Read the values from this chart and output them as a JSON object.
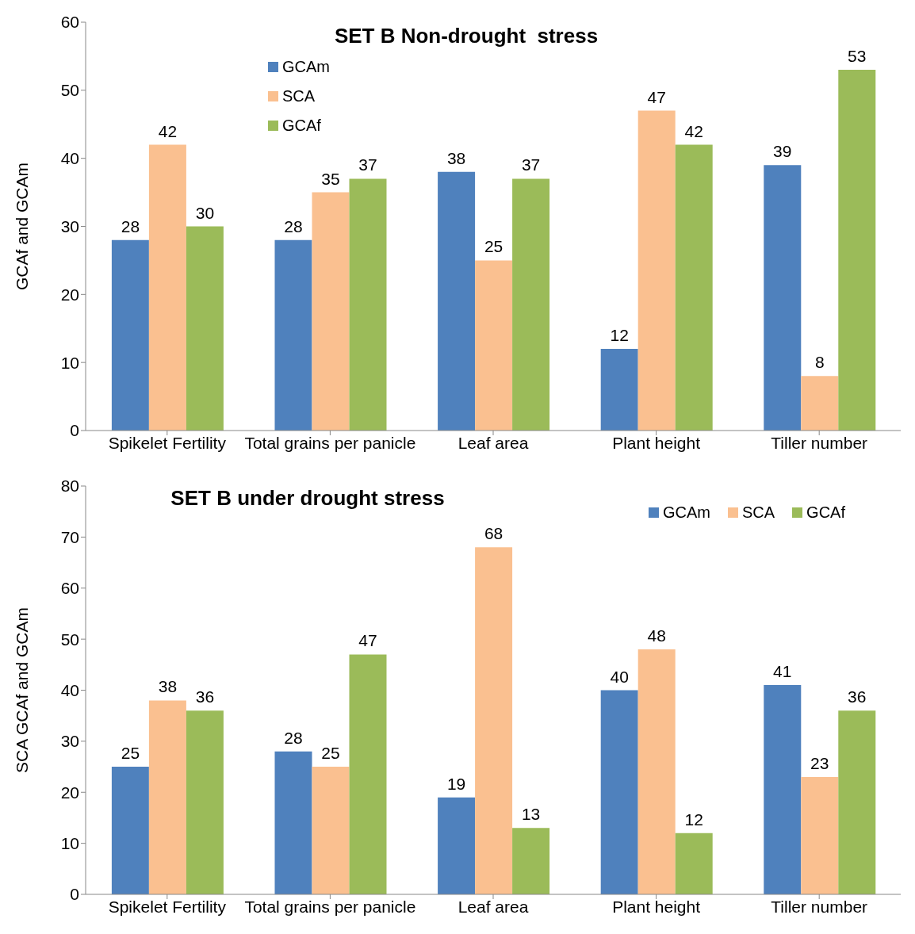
{
  "chart_data": [
    {
      "type": "bar",
      "title": "SET B Non-drought  stress",
      "ylabel": "GCAf and GCAm",
      "categories": [
        "Spikelet Fertility",
        "Total grains per panicle",
        "Leaf area",
        "Plant height",
        "Tiller number"
      ],
      "series": [
        {
          "name": "GCAm",
          "color": "#4f81bd",
          "values": [
            28,
            28,
            38,
            12,
            39
          ]
        },
        {
          "name": "SCA",
          "color": "#fac090",
          "values": [
            42,
            35,
            25,
            47,
            8
          ]
        },
        {
          "name": "GCAf",
          "color": "#9bbb59",
          "values": [
            30,
            37,
            37,
            42,
            53
          ]
        }
      ],
      "ylim": [
        0,
        60
      ],
      "yticks": [
        0,
        10,
        20,
        30,
        40,
        50,
        60
      ],
      "data_labels": true,
      "legend": "top left",
      "grid": false
    },
    {
      "type": "bar",
      "title": "SET B under drought stress",
      "ylabel": "SCA GCAf and GCAm",
      "categories": [
        "Spikelet Fertility",
        "Total grains per panicle",
        "Leaf area",
        "Plant height",
        "Tiller number"
      ],
      "series": [
        {
          "name": "GCAm",
          "color": "#4f81bd",
          "values": [
            25,
            28,
            19,
            40,
            41
          ]
        },
        {
          "name": "SCA",
          "color": "#fac090",
          "values": [
            38,
            25,
            68,
            48,
            23
          ]
        },
        {
          "name": "GCAf",
          "color": "#9bbb59",
          "values": [
            36,
            47,
            13,
            12,
            36
          ]
        }
      ],
      "ylim": [
        0,
        80
      ],
      "yticks": [
        0,
        10,
        20,
        30,
        40,
        50,
        60,
        70,
        80
      ],
      "data_labels": true,
      "legend": "top right",
      "grid": false
    }
  ]
}
